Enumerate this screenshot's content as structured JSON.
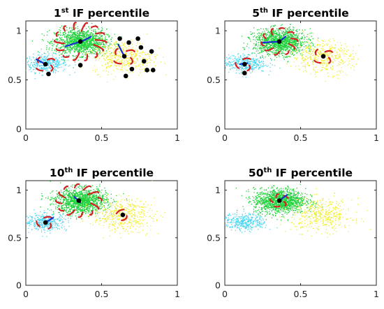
{
  "colors": {
    "cluster_cyan": "#4fd6f0",
    "cluster_green": "#1fd13a",
    "cluster_yellow": "#f0ee2e",
    "center_marker": "#000000",
    "principal_direction": "#1530d0",
    "spread_arcs": "#d42020",
    "axes": "#262626"
  },
  "chart_data": [
    {
      "type": "scatter",
      "title": {
        "pre": "1",
        "sup": "st",
        "post": " IF percentile"
      },
      "xlim": [
        0,
        1
      ],
      "ylim": [
        0,
        1.1
      ],
      "xticks": [
        0,
        0.5,
        1
      ],
      "yticks": [
        0,
        0.5,
        1
      ],
      "xtick_labels": [
        "0",
        "0.5",
        "1"
      ],
      "ytick_labels": [
        "0",
        "0.5",
        "1"
      ],
      "grid": false,
      "clusters": [
        {
          "color": "cluster_cyan",
          "center": [
            0.13,
            0.67
          ],
          "spread": [
            0.07,
            0.045
          ],
          "count": 380
        },
        {
          "color": "cluster_green",
          "center": [
            0.36,
            0.89
          ],
          "spread": [
            0.085,
            0.065
          ],
          "count": 1300
        },
        {
          "color": "cluster_yellow",
          "center": [
            0.64,
            0.74
          ],
          "spread": [
            0.1,
            0.085
          ],
          "count": 420
        }
      ],
      "centers": [
        [
          0.13,
          0.66
        ],
        [
          0.15,
          0.56
        ],
        [
          0.36,
          0.65
        ],
        [
          0.36,
          0.89
        ],
        [
          0.62,
          0.92
        ],
        [
          0.65,
          0.74
        ],
        [
          0.66,
          0.54
        ],
        [
          0.68,
          0.88
        ],
        [
          0.74,
          0.92
        ],
        [
          0.76,
          0.83
        ],
        [
          0.78,
          0.69
        ],
        [
          0.8,
          0.6
        ],
        [
          0.83,
          0.79
        ],
        [
          0.84,
          0.6
        ],
        [
          0.7,
          0.61
        ]
      ],
      "directions": [
        {
          "from": [
            0.07,
            0.71
          ],
          "to": [
            0.14,
            0.65
          ]
        },
        {
          "from": [
            0.26,
            0.84
          ],
          "to": [
            0.38,
            0.9
          ]
        },
        {
          "from": [
            0.38,
            0.9
          ],
          "to": [
            0.43,
            0.94
          ]
        },
        {
          "from": [
            0.61,
            0.86
          ],
          "to": [
            0.65,
            0.74
          ]
        }
      ],
      "arcs": [
        {
          "center": [
            0.36,
            0.89
          ],
          "radius": 0.17,
          "pieces": 14
        },
        {
          "center": [
            0.65,
            0.74
          ],
          "radius": 0.08,
          "pieces": 4
        },
        {
          "center": [
            0.13,
            0.66
          ],
          "radius": 0.07,
          "pieces": 4
        }
      ]
    },
    {
      "type": "scatter",
      "title": {
        "pre": "5",
        "sup": "th",
        "post": " IF percentile"
      },
      "xlim": [
        0,
        1
      ],
      "ylim": [
        0,
        1.1
      ],
      "xticks": [
        0,
        0.5,
        1
      ],
      "yticks": [
        0,
        0.5,
        1
      ],
      "xtick_labels": [
        "0",
        "0.5",
        "1"
      ],
      "ytick_labels": [
        "0",
        "0.5",
        "1"
      ],
      "grid": false,
      "clusters": [
        {
          "color": "cluster_cyan",
          "center": [
            0.13,
            0.67
          ],
          "spread": [
            0.07,
            0.045
          ],
          "count": 380
        },
        {
          "color": "cluster_green",
          "center": [
            0.36,
            0.89
          ],
          "spread": [
            0.085,
            0.065
          ],
          "count": 1300
        },
        {
          "color": "cluster_yellow",
          "center": [
            0.64,
            0.74
          ],
          "spread": [
            0.1,
            0.085
          ],
          "count": 420
        }
      ],
      "centers": [
        [
          0.13,
          0.66
        ],
        [
          0.13,
          0.57
        ],
        [
          0.36,
          0.89
        ],
        [
          0.65,
          0.74
        ]
      ],
      "directions": [
        {
          "from": [
            0.25,
            0.88
          ],
          "to": [
            0.36,
            0.89
          ]
        },
        {
          "from": [
            0.36,
            0.89
          ],
          "to": [
            0.4,
            0.94
          ]
        },
        {
          "from": [
            0.1,
            0.66
          ],
          "to": [
            0.15,
            0.67
          ]
        }
      ],
      "arcs": [
        {
          "center": [
            0.36,
            0.89
          ],
          "radius": 0.12,
          "pieces": 10
        },
        {
          "center": [
            0.65,
            0.74
          ],
          "radius": 0.07,
          "pieces": 4
        },
        {
          "center": [
            0.13,
            0.66
          ],
          "radius": 0.06,
          "pieces": 3
        }
      ]
    },
    {
      "type": "scatter",
      "title": {
        "pre": "10",
        "sup": "th",
        "post": " IF percentile"
      },
      "xlim": [
        0,
        1
      ],
      "ylim": [
        0,
        1.1
      ],
      "xticks": [
        0,
        0.5,
        1
      ],
      "yticks": [
        0,
        0.5,
        1
      ],
      "xtick_labels": [
        "0",
        "0.5",
        "1"
      ],
      "ytick_labels": [
        "0",
        "0.5",
        "1"
      ],
      "grid": false,
      "clusters": [
        {
          "color": "cluster_cyan",
          "center": [
            0.13,
            0.67
          ],
          "spread": [
            0.07,
            0.045
          ],
          "count": 380
        },
        {
          "color": "cluster_green",
          "center": [
            0.36,
            0.89
          ],
          "spread": [
            0.085,
            0.065
          ],
          "count": 1300
        },
        {
          "color": "cluster_yellow",
          "center": [
            0.64,
            0.74
          ],
          "spread": [
            0.1,
            0.085
          ],
          "count": 420
        }
      ],
      "centers": [
        [
          0.13,
          0.66
        ],
        [
          0.35,
          0.89
        ],
        [
          0.64,
          0.74
        ]
      ],
      "directions": [
        {
          "from": [
            0.32,
            0.93
          ],
          "to": [
            0.36,
            0.87
          ]
        },
        {
          "from": [
            0.13,
            0.66
          ],
          "to": [
            0.18,
            0.71
          ]
        }
      ],
      "arcs": [
        {
          "center": [
            0.35,
            0.89
          ],
          "radius": 0.15,
          "pieces": 12
        },
        {
          "center": [
            0.64,
            0.74
          ],
          "radius": 0.05,
          "pieces": 2
        },
        {
          "center": [
            0.13,
            0.66
          ],
          "radius": 0.06,
          "pieces": 3
        }
      ]
    },
    {
      "type": "scatter",
      "title": {
        "pre": "50",
        "sup": "th",
        "post": " IF percentile"
      },
      "xlim": [
        0,
        1
      ],
      "ylim": [
        0,
        1.1
      ],
      "xticks": [
        0,
        0.5,
        1
      ],
      "yticks": [
        0,
        0.5,
        1
      ],
      "xtick_labels": [
        "0",
        "0.5",
        "1"
      ],
      "ytick_labels": [
        "0",
        "0.5",
        "1"
      ],
      "grid": false,
      "clusters": [
        {
          "color": "cluster_cyan",
          "center": [
            0.13,
            0.67
          ],
          "spread": [
            0.07,
            0.045
          ],
          "count": 380
        },
        {
          "color": "cluster_green",
          "center": [
            0.36,
            0.89
          ],
          "spread": [
            0.085,
            0.065
          ],
          "count": 1300
        },
        {
          "color": "cluster_yellow",
          "center": [
            0.64,
            0.74
          ],
          "spread": [
            0.1,
            0.085
          ],
          "count": 420
        }
      ],
      "centers": [
        [
          0.36,
          0.89
        ]
      ],
      "directions": [
        {
          "from": [
            0.36,
            0.89
          ],
          "to": [
            0.41,
            0.95
          ]
        }
      ],
      "arcs": [
        {
          "center": [
            0.36,
            0.89
          ],
          "radius": 0.06,
          "pieces": 5
        }
      ]
    }
  ]
}
